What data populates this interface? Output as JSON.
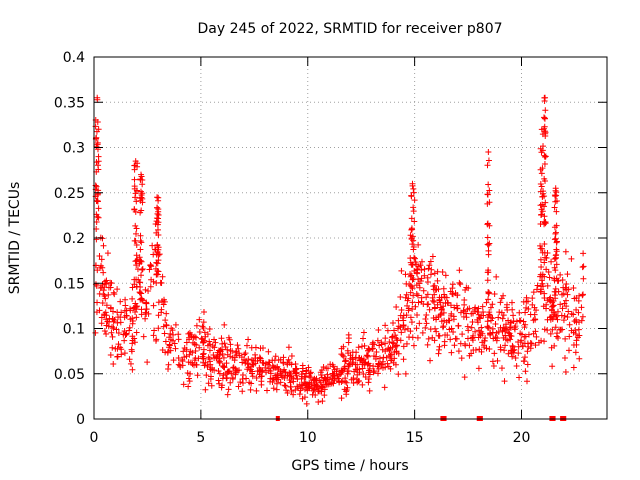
{
  "chart_data": {
    "type": "scatter",
    "title": "Day 245 of 2022, SRMTID for receiver p807",
    "xlabel": "GPS time / hours",
    "ylabel": "SRMTID / TECUs",
    "xlim": [
      0,
      24
    ],
    "ylim": [
      0,
      0.4
    ],
    "x_ticks": [
      0,
      5,
      10,
      15,
      20
    ],
    "y_ticks": [
      0,
      0.05,
      0.1,
      0.15,
      0.2,
      0.25,
      0.3,
      0.35,
      0.4
    ],
    "x_tick_labels": [
      "0",
      "5",
      "10",
      "15",
      "20"
    ],
    "y_tick_labels": [
      "0",
      "0.05",
      "0.1",
      "0.15",
      "0.2",
      "0.25",
      "0.3",
      "0.35",
      "0.4"
    ],
    "grid": true,
    "marker": "+",
    "color": "#ff0000",
    "gap_markers_x": [
      8.6,
      16.3,
      16.4,
      18.0,
      18.1,
      21.4,
      21.5,
      21.9,
      22.0
    ],
    "trend": {
      "x": [
        0,
        0.2,
        0.5,
        1,
        1.5,
        2,
        2.5,
        3,
        3.5,
        4,
        5,
        6,
        7,
        8,
        9,
        10,
        10.5,
        11,
        12,
        13,
        13.5,
        14,
        14.5,
        15,
        15.5,
        16,
        17,
        18,
        19,
        20,
        20.5,
        21,
        21.5,
        22,
        22.5,
        23
      ],
      "y": [
        0.16,
        0.2,
        0.14,
        0.1,
        0.09,
        0.13,
        0.13,
        0.16,
        0.09,
        0.07,
        0.08,
        0.065,
        0.06,
        0.055,
        0.05,
        0.04,
        0.035,
        0.045,
        0.06,
        0.065,
        0.07,
        0.08,
        0.11,
        0.16,
        0.14,
        0.12,
        0.11,
        0.1,
        0.1,
        0.09,
        0.1,
        0.15,
        0.12,
        0.12,
        0.1,
        0.15
      ]
    },
    "spikes": [
      {
        "x": 0.15,
        "peak": 0.355,
        "width": 0.15
      },
      {
        "x": 1.95,
        "peak": 0.285,
        "width": 0.2
      },
      {
        "x": 2.2,
        "peak": 0.27,
        "width": 0.15
      },
      {
        "x": 2.95,
        "peak": 0.245,
        "width": 0.15
      },
      {
        "x": 14.9,
        "peak": 0.26,
        "width": 0.2
      },
      {
        "x": 18.45,
        "peak": 0.295,
        "width": 0.1
      },
      {
        "x": 20.95,
        "peak": 0.32,
        "width": 0.12
      },
      {
        "x": 21.1,
        "peak": 0.355,
        "width": 0.1
      },
      {
        "x": 21.6,
        "peak": 0.255,
        "width": 0.12
      }
    ]
  }
}
